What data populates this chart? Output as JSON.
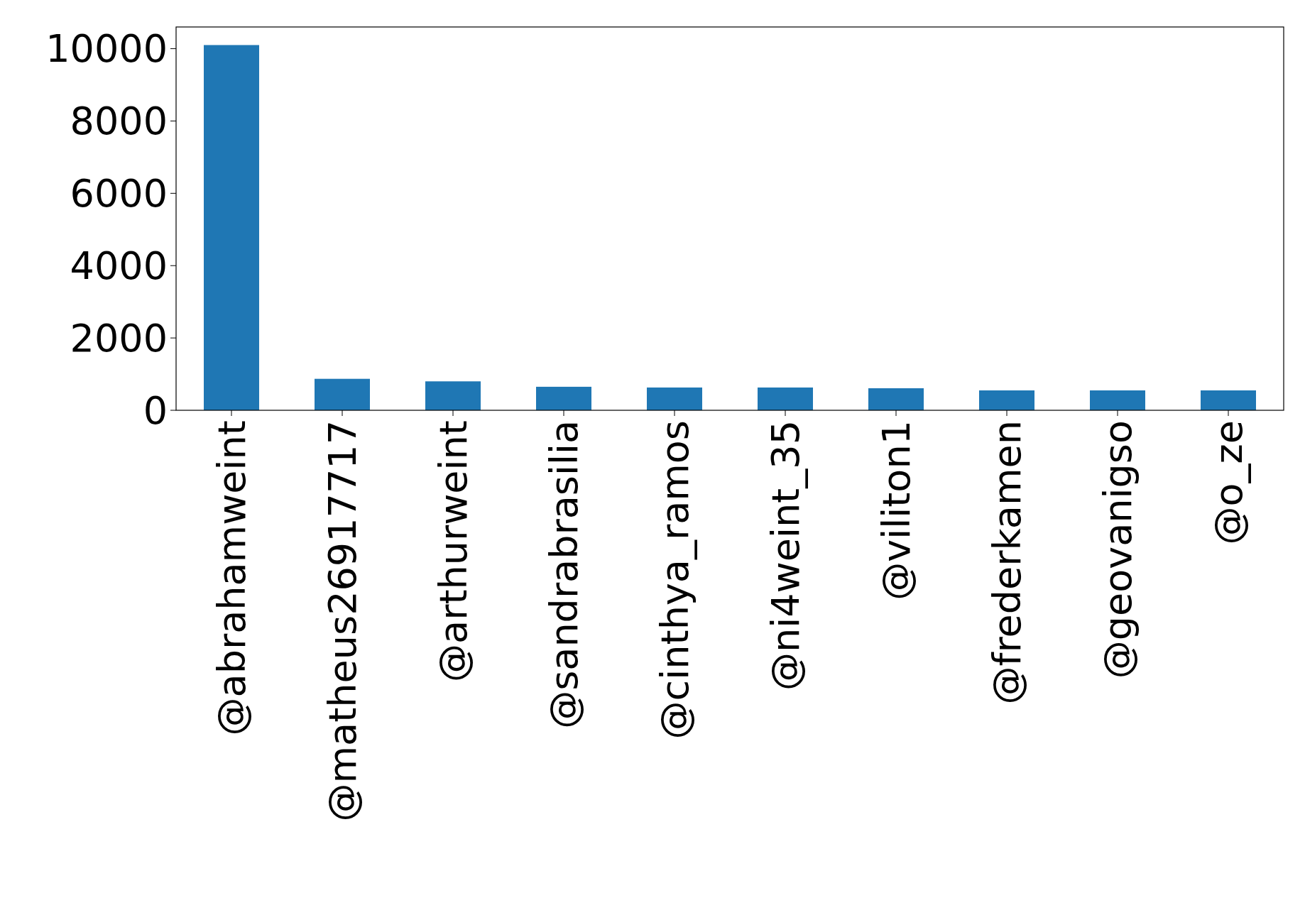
{
  "chart_data": {
    "type": "bar",
    "categories": [
      "@abrahamweint",
      "@matheus26917717",
      "@arthurweint",
      "@sandrabrasilia",
      "@cinthya_ramos",
      "@ni4weint_35",
      "@viliton1",
      "@frederkamen",
      "@geovanigso",
      "@o_ze"
    ],
    "values": [
      10100,
      870,
      800,
      650,
      630,
      630,
      610,
      550,
      550,
      550
    ],
    "color": "#1f77b4",
    "ylim": [
      0,
      10600
    ],
    "yticks": [
      0,
      2000,
      4000,
      6000,
      8000,
      10000
    ],
    "grid": false
  }
}
